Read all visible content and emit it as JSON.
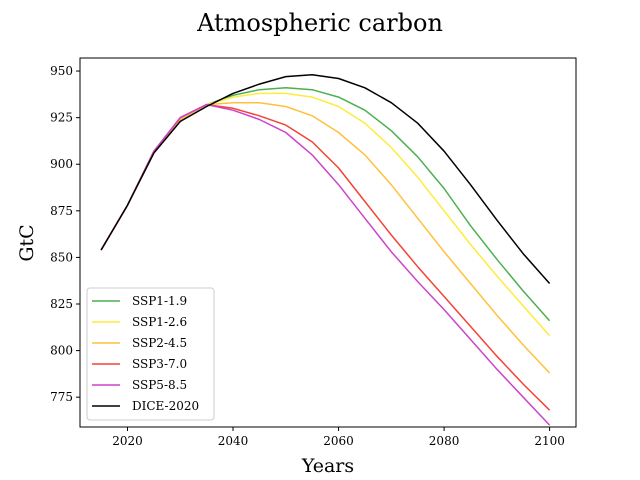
{
  "chart_data": {
    "type": "line",
    "title": "Atmospheric carbon",
    "xlabel": "Years",
    "ylabel": "GtC",
    "xlim": [
      2011,
      2105
    ],
    "ylim": [
      759,
      957
    ],
    "xticks": [
      2020,
      2040,
      2060,
      2080,
      2100
    ],
    "yticks": [
      775,
      800,
      825,
      850,
      875,
      900,
      925,
      950
    ],
    "grid": false,
    "legend_position": "lower-left",
    "x": [
      2015,
      2020,
      2025,
      2030,
      2035,
      2040,
      2045,
      2050,
      2055,
      2060,
      2065,
      2070,
      2075,
      2080,
      2085,
      2090,
      2095,
      2100
    ],
    "series": [
      {
        "name": "SSP1-1.9",
        "color": "#4caf50",
        "values": [
          854,
          878,
          907,
          924,
          932,
          937,
          940,
          941,
          940,
          936,
          929,
          918,
          904,
          887,
          867,
          849,
          832,
          816
        ]
      },
      {
        "name": "SSP1-2.6",
        "color": "#ffeb3b",
        "values": [
          854,
          878,
          907,
          924,
          932,
          936,
          938,
          938,
          936,
          931,
          922,
          909,
          893,
          875,
          857,
          840,
          824,
          808
        ]
      },
      {
        "name": "SSP2-4.5",
        "color": "#ffc13b",
        "values": [
          854,
          878,
          907,
          924,
          932,
          933,
          933,
          931,
          926,
          917,
          905,
          889,
          871,
          853,
          836,
          819,
          803,
          788
        ]
      },
      {
        "name": "SSP3-7.0",
        "color": "#f44336",
        "values": [
          854,
          878,
          907,
          925,
          932,
          930,
          926,
          921,
          912,
          898,
          880,
          862,
          845,
          829,
          813,
          797,
          782,
          768
        ]
      },
      {
        "name": "SSP5-8.5",
        "color": "#cc44cc",
        "values": [
          854,
          878,
          907,
          925,
          932,
          929,
          924,
          917,
          905,
          889,
          871,
          853,
          837,
          822,
          806,
          790,
          775,
          760
        ]
      },
      {
        "name": "DICE-2020",
        "color": "#000000",
        "values": [
          854,
          878,
          906,
          923,
          931,
          938,
          943,
          947,
          948,
          946,
          941,
          933,
          922,
          907,
          889,
          870,
          852,
          836
        ]
      }
    ]
  }
}
